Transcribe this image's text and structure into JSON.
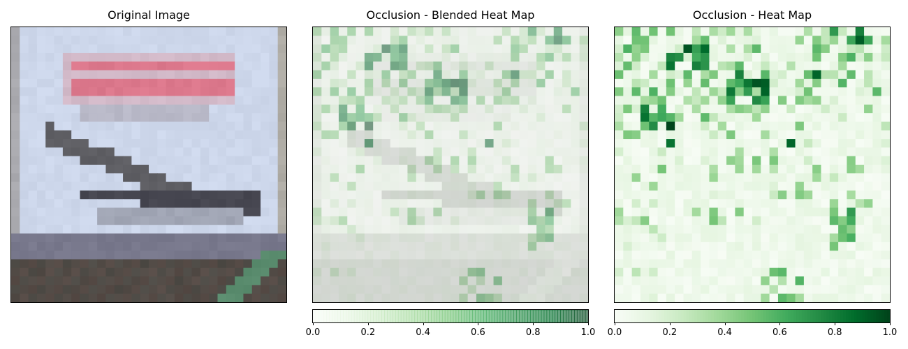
{
  "chart_data": [
    {
      "type": "image",
      "title": "Original Image",
      "description_grid": "32x32 pixel CIFAR-style image of an aircraft (concorde-like) over a dark ground, with a red banner above"
    },
    {
      "type": "heatmap",
      "title": "Occlusion - Blended Heat Map",
      "grid_size": [
        32,
        32
      ],
      "colormap": "Greens",
      "colorbar": {
        "ticks": [
          "0.0",
          "0.2",
          "0.4",
          "0.6",
          "0.8",
          "1.0"
        ],
        "range": [
          0,
          1
        ]
      }
    },
    {
      "type": "heatmap",
      "title": "Occlusion - Heat Map",
      "grid_size": [
        32,
        32
      ],
      "colormap": "Greens",
      "colorbar": {
        "ticks": [
          "0.0",
          "0.2",
          "0.4",
          "0.6",
          "0.8",
          "1.0"
        ],
        "range": [
          0,
          1
        ]
      }
    }
  ],
  "colors": {
    "green_low": "#f7fcf5",
    "green_mid": "#74c476",
    "green_high": "#00441b"
  }
}
